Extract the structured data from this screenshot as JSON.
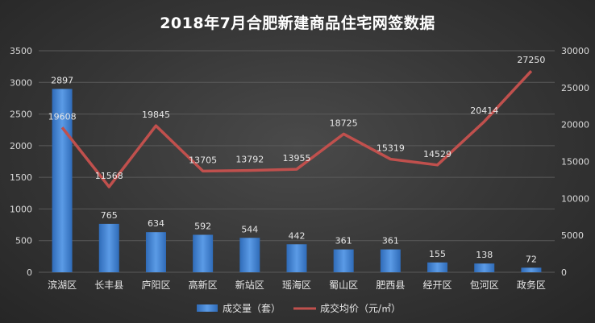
{
  "chart_data": {
    "type": "bar",
    "title": "2018年7月合肥新建商品住宅网签数据",
    "categories": [
      "滨湖区",
      "长丰县",
      "庐阳区",
      "高新区",
      "新站区",
      "瑶海区",
      "蜀山区",
      "肥西县",
      "经开区",
      "包河区",
      "政务区"
    ],
    "series": [
      {
        "name": "成交量（套）",
        "type": "bar",
        "axis": "left",
        "color": "#4f8fde",
        "values": [
          2897,
          765,
          634,
          592,
          544,
          442,
          361,
          361,
          155,
          138,
          72
        ]
      },
      {
        "name": "成交均价（元/㎡）",
        "type": "line",
        "axis": "right",
        "color": "#c0504d",
        "values": [
          19608,
          11568,
          19845,
          13705,
          13792,
          13955,
          18725,
          15319,
          14529,
          20414,
          27250
        ]
      }
    ],
    "y_left": {
      "ylim": [
        0,
        3500
      ],
      "ticks": [
        "0",
        "500",
        "1000",
        "1500",
        "2000",
        "2500",
        "3000",
        "3500"
      ]
    },
    "y_right": {
      "ylim": [
        0,
        30000
      ],
      "ticks": [
        "0",
        "5000",
        "10000",
        "15000",
        "20000",
        "25000",
        "30000"
      ]
    },
    "legend_position": "bottom",
    "grid": true
  }
}
